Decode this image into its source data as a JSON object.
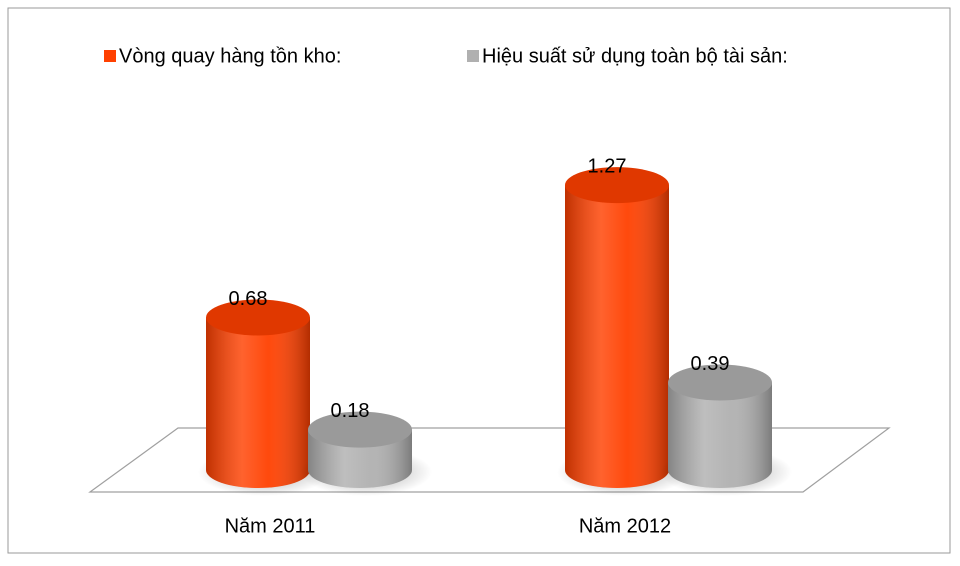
{
  "chart_data": {
    "type": "cylinder",
    "categories": [
      "Năm 2011",
      "Năm 2012"
    ],
    "series": [
      {
        "name": "Vòng quay hàng tồn kho:",
        "color": "#ff4000",
        "values": [
          0.68,
          1.27
        ]
      },
      {
        "name": "Hiệu suất sử dụng toàn bộ tài sản:",
        "color": "#b0b0b0",
        "values": [
          0.18,
          0.39
        ]
      }
    ],
    "ylim": [
      0,
      1.4
    ]
  }
}
